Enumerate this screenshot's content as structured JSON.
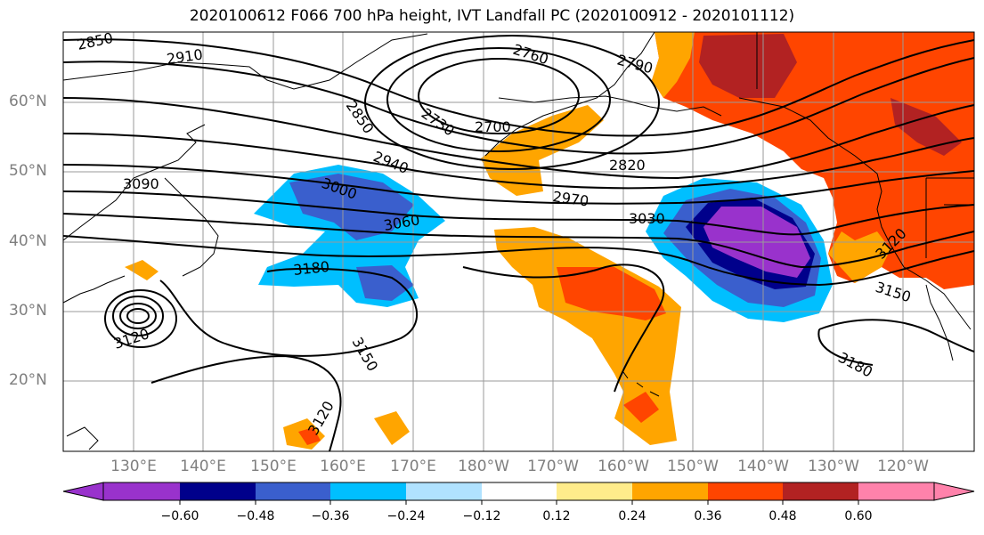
{
  "title": "2020100612 F066 700 hPa height, IVT Landfall PC (2020100912 - 2020101112)",
  "lat_labels": [
    "60°N",
    "50°N",
    "40°N",
    "30°N",
    "20°N"
  ],
  "lon_labels": [
    "130°E",
    "140°E",
    "150°E",
    "160°E",
    "170°E",
    "180°W",
    "170°W",
    "160°W",
    "150°W",
    "140°W",
    "130°W",
    "120°W"
  ],
  "contour_labels": [
    "2850",
    "2910",
    "2760",
    "2790",
    "2850",
    "2730",
    "2700",
    "2940",
    "2820",
    "3090",
    "3000",
    "2970",
    "3030",
    "3060",
    "3180",
    "3120",
    "3150",
    "3150",
    "3180",
    "3120",
    "3120"
  ],
  "colorbar": {
    "colors": [
      "#9932cc",
      "#00008b",
      "#3a5fcd",
      "#00bfff",
      "#b0e2ff",
      "#ffffff",
      "#ffec8b",
      "#ffa500",
      "#ff4500",
      "#b22222",
      "#ff82ab"
    ],
    "ticks": [
      "−0.60",
      "−0.48",
      "−0.36",
      "−0.24",
      "−0.12",
      "0.12",
      "0.24",
      "0.36",
      "0.48",
      "0.60"
    ]
  }
}
